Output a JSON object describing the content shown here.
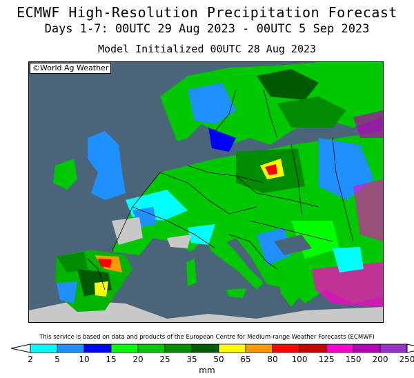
{
  "header": {
    "title": "ECMWF High-Resolution Precipitation Forecast",
    "period": "Days 1-7: 00UTC 29 Aug 2023 - 00UTC 5 Sep 2023",
    "initialized": "Model Initialized 00UTC 28 Aug 2023"
  },
  "map": {
    "copyright": "©World Ag Weather",
    "region": "Europe",
    "colors": {
      "sea": "#4a6479",
      "no_data_land": "#c8c8c8",
      "borders": "#000000"
    }
  },
  "footer": {
    "disclaimer": "This service is based on data and products of the European Centre for Medium-range Weather Forecasts (ECMWF)",
    "unit": "mm"
  },
  "legend": {
    "ticks": [
      "2",
      "5",
      "10",
      "15",
      "20",
      "25",
      "35",
      "50",
      "65",
      "80",
      "100",
      "125",
      "150",
      "200",
      "250"
    ],
    "colors": [
      "#00ffff",
      "#1e90ff",
      "#0000ff",
      "#00ff00",
      "#00c800",
      "#008c00",
      "#005a00",
      "#ffff00",
      "#ff9900",
      "#ff0000",
      "#c80000",
      "#ff00c8",
      "#b400b4",
      "#9632c8"
    ],
    "below_min_color": "#ffffff",
    "above_max_color": "#ffffff"
  }
}
